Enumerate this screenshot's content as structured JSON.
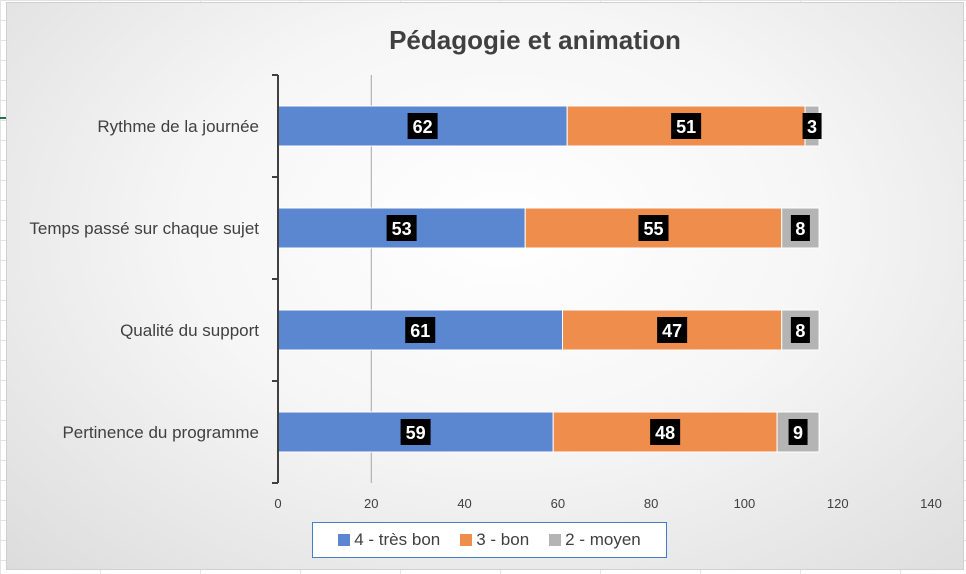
{
  "chart_data": {
    "type": "bar",
    "orientation": "horizontal",
    "stacked": true,
    "title": "Pédagogie et animation",
    "categories": [
      "Rythme de la journée",
      "Temps passé sur chaque sujet",
      "Qualité du support",
      "Pertinence du programme"
    ],
    "series": [
      {
        "name": "4 - très bon",
        "color": "#5b86d0",
        "values": [
          62,
          53,
          61,
          59
        ]
      },
      {
        "name": "3 - bon",
        "color": "#ee8d4c",
        "values": [
          51,
          55,
          47,
          48
        ]
      },
      {
        "name": "2 - moyen",
        "color": "#b4b4b4",
        "values": [
          3,
          8,
          8,
          9
        ]
      }
    ],
    "xlim": [
      0,
      140
    ],
    "xticks": [
      0,
      20,
      40,
      60,
      80,
      100,
      120,
      140
    ],
    "reference_line": 20,
    "legend_position": "bottom",
    "grid": false
  }
}
